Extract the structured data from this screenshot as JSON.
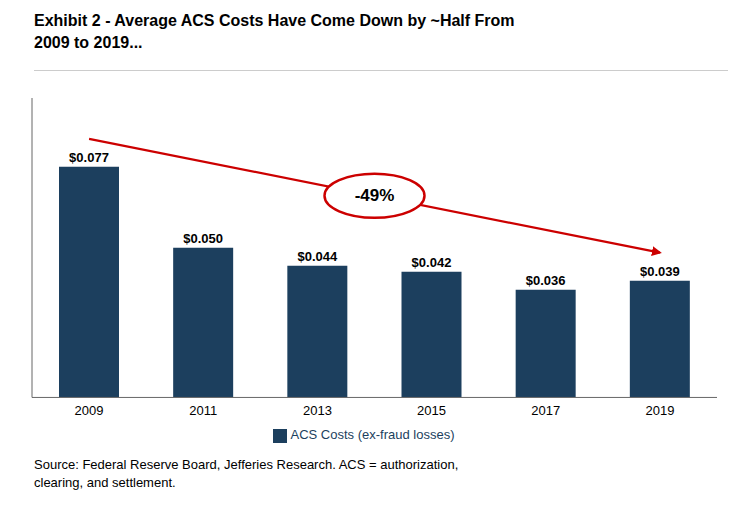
{
  "chart_data": {
    "type": "bar",
    "title": "Exhibit 2 - Average ACS Costs Have Come Down by ~Half From\n2009 to 2019...",
    "categories": [
      "2009",
      "2011",
      "2013",
      "2015",
      "2017",
      "2019"
    ],
    "series": [
      {
        "name": "ACS Costs (ex-fraud losses)",
        "color": "#1c3f5e",
        "values": [
          0.077,
          0.05,
          0.044,
          0.042,
          0.036,
          0.039
        ],
        "value_labels": [
          "$0.077",
          "$0.050",
          "$0.044",
          "$0.042",
          "$0.036",
          "$0.039"
        ]
      }
    ],
    "ylim": [
      0,
      0.1
    ],
    "data_labels": true,
    "tick_labels": "x",
    "grid": false,
    "legend": "bottom",
    "annotations": [
      {
        "text": "-49%",
        "color": "#cc0000"
      }
    ],
    "source": "Source: Federal Reserve Board, Jefferies Research. ACS = authorization,\nclearing, and settlement."
  }
}
